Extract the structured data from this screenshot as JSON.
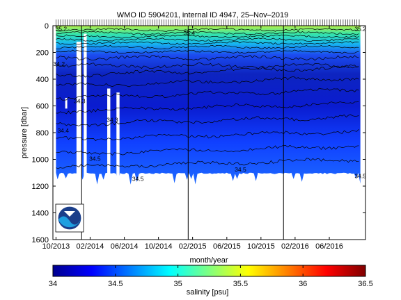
{
  "chart_data": {
    "type": "heatmap",
    "title": "WMO ID 5904201, internal ID 4947, 25–Nov–2019",
    "xlabel": "month/year",
    "ylabel": "pressure [dbar]",
    "x_tick_labels": [
      "10/2013",
      "02/2014",
      "06/2014",
      "10/2014",
      "02/2015",
      "06/2015",
      "10/2015",
      "02/2016",
      "06/2016"
    ],
    "x_tick_values": [
      2013.75,
      2014.083,
      2014.417,
      2014.75,
      2015.083,
      2015.417,
      2015.75,
      2016.083,
      2016.417
    ],
    "xlim": [
      2013.72,
      2016.77
    ],
    "y_tick_values": [
      0,
      200,
      400,
      600,
      800,
      1000,
      1200,
      1400,
      1600
    ],
    "ylim": [
      0,
      1600
    ],
    "y_reversed": true,
    "max_pressure_dbar": 1100,
    "vertical_lines_x": [
      2014.0,
      2015.04,
      2015.97
    ],
    "colorbar": {
      "label": "salinity [psu]",
      "range": [
        34,
        36.5
      ],
      "tick_labels": [
        "34",
        "34.5",
        "35",
        "35.5",
        "36",
        "36.5"
      ],
      "colormap": "jet"
    },
    "contour_labels": [
      {
        "text": "35.2",
        "x": 2013.8,
        "p": 40
      },
      {
        "text": "35.4",
        "x": 2015.05,
        "p": 70
      },
      {
        "text": "35.2",
        "x": 2016.72,
        "p": 40
      },
      {
        "text": "34.2",
        "x": 2013.78,
        "p": 300
      },
      {
        "text": "34.3",
        "x": 2013.98,
        "p": 580
      },
      {
        "text": "34.3",
        "x": 2014.3,
        "p": 720
      },
      {
        "text": "34.4",
        "x": 2013.82,
        "p": 800
      },
      {
        "text": "34.5",
        "x": 2014.13,
        "p": 1010
      },
      {
        "text": "34.5",
        "x": 2014.55,
        "p": 1160
      },
      {
        "text": "34.5",
        "x": 2015.55,
        "p": 1090
      },
      {
        "text": "34.5",
        "x": 2016.72,
        "p": 1140
      }
    ],
    "legend": "none",
    "grid": false,
    "logo": "NOAA"
  }
}
